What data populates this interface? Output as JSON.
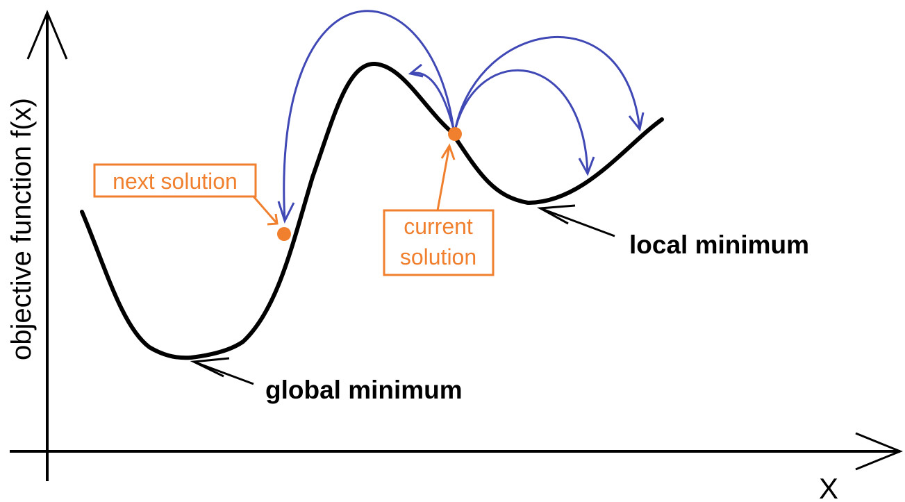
{
  "axes": {
    "y_label": "objective function f(x)",
    "x_label": "X"
  },
  "annotations": {
    "next_solution": "next solution",
    "current_solution_line1": "current",
    "current_solution_line2": "solution",
    "local_minimum": "local minimum",
    "global_minimum": "global minimum"
  },
  "colors": {
    "curve": "#000000",
    "move_arrows": "#3f48b5",
    "solutions": "#f07f2e"
  }
}
